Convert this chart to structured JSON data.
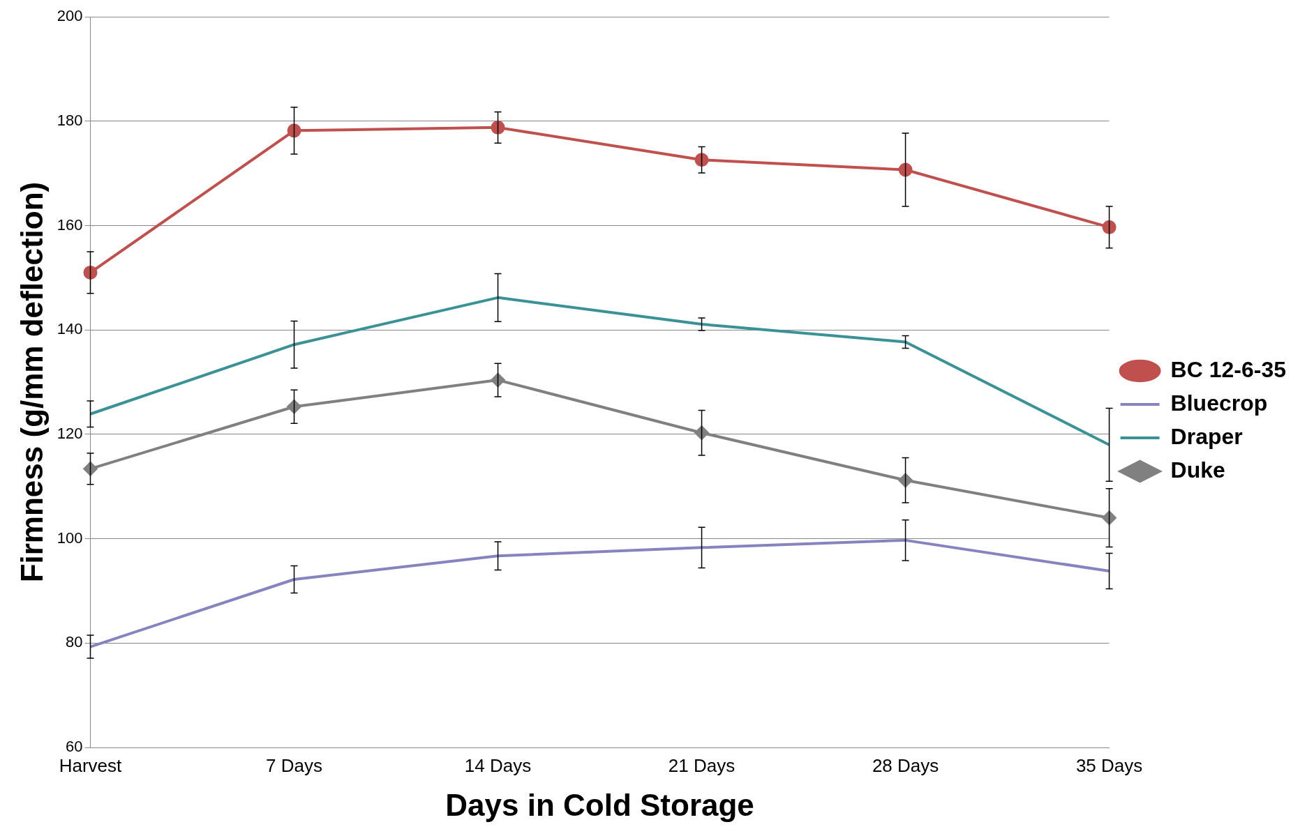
{
  "chart_data": {
    "type": "line",
    "xlabel": "Days in Cold Storage",
    "ylabel": "Firmness (g/mm deflection)",
    "categories": [
      "Harvest",
      "7 Days",
      "14 Days",
      "21 Days",
      "28 Days",
      "35 Days"
    ],
    "series": [
      {
        "name": "BC 12-6-35",
        "color": "#c0504d",
        "marker": "circle",
        "values": [
          151,
          178.2,
          178.8,
          172.6,
          170.7,
          159.7
        ],
        "errors": [
          4,
          4.5,
          3,
          2.5,
          7,
          4
        ]
      },
      {
        "name": "Bluecrop",
        "color": "#8783bf",
        "marker": "none",
        "values": [
          79.3,
          92.2,
          96.7,
          98.3,
          99.7,
          93.8
        ],
        "errors": [
          2.2,
          2.6,
          2.7,
          3.9,
          3.9,
          3.4
        ]
      },
      {
        "name": "Draper",
        "color": "#3a9297",
        "marker": "none",
        "values": [
          123.9,
          137.2,
          146.2,
          141.1,
          137.7,
          118
        ],
        "errors": [
          2.5,
          4.5,
          4.6,
          1.2,
          1.2,
          7
        ]
      },
      {
        "name": "Duke",
        "color": "#808080",
        "marker": "diamond",
        "values": [
          113.4,
          125.3,
          130.4,
          120.3,
          111.2,
          104
        ],
        "errors": [
          3,
          3.2,
          3.2,
          4.3,
          4.3,
          5.6
        ]
      }
    ],
    "ylim": [
      60,
      200
    ],
    "yticks": [
      60,
      80,
      100,
      120,
      140,
      160,
      180,
      200
    ],
    "grid": "y",
    "legend": "right"
  }
}
